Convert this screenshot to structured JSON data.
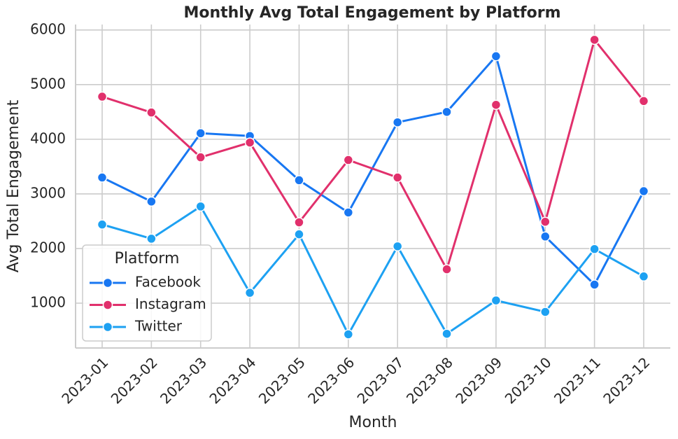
{
  "chart_data": {
    "type": "line",
    "title": "Monthly Avg Total Engagement by Platform",
    "x_label": "Month",
    "y_label": "Avg Total Engagement",
    "categories": [
      "2023-01",
      "2023-02",
      "2023-03",
      "2023-04",
      "2023-05",
      "2023-06",
      "2023-07",
      "2023-08",
      "2023-09",
      "2023-10",
      "2023-11",
      "2023-12"
    ],
    "series": [
      {
        "name": "Facebook",
        "color": "#1877f2",
        "values": [
          3300,
          2860,
          4110,
          4060,
          3250,
          2660,
          4310,
          4500,
          5520,
          2220,
          1340,
          3050
        ]
      },
      {
        "name": "Instagram",
        "color": "#e1306c",
        "values": [
          4780,
          4490,
          3670,
          3940,
          2480,
          3620,
          3300,
          1620,
          4630,
          2490,
          5820,
          4700
        ]
      },
      {
        "name": "Twitter",
        "color": "#1da1f2",
        "values": [
          2440,
          2180,
          2770,
          1190,
          2260,
          430,
          2040,
          440,
          1050,
          840,
          1990,
          1490
        ]
      }
    ],
    "ylim": [
      180,
      6100
    ],
    "yticks": [
      1000,
      2000,
      3000,
      4000,
      5000,
      6000
    ],
    "grid": true,
    "legend_title": "Platform",
    "legend_position": "lower left"
  }
}
